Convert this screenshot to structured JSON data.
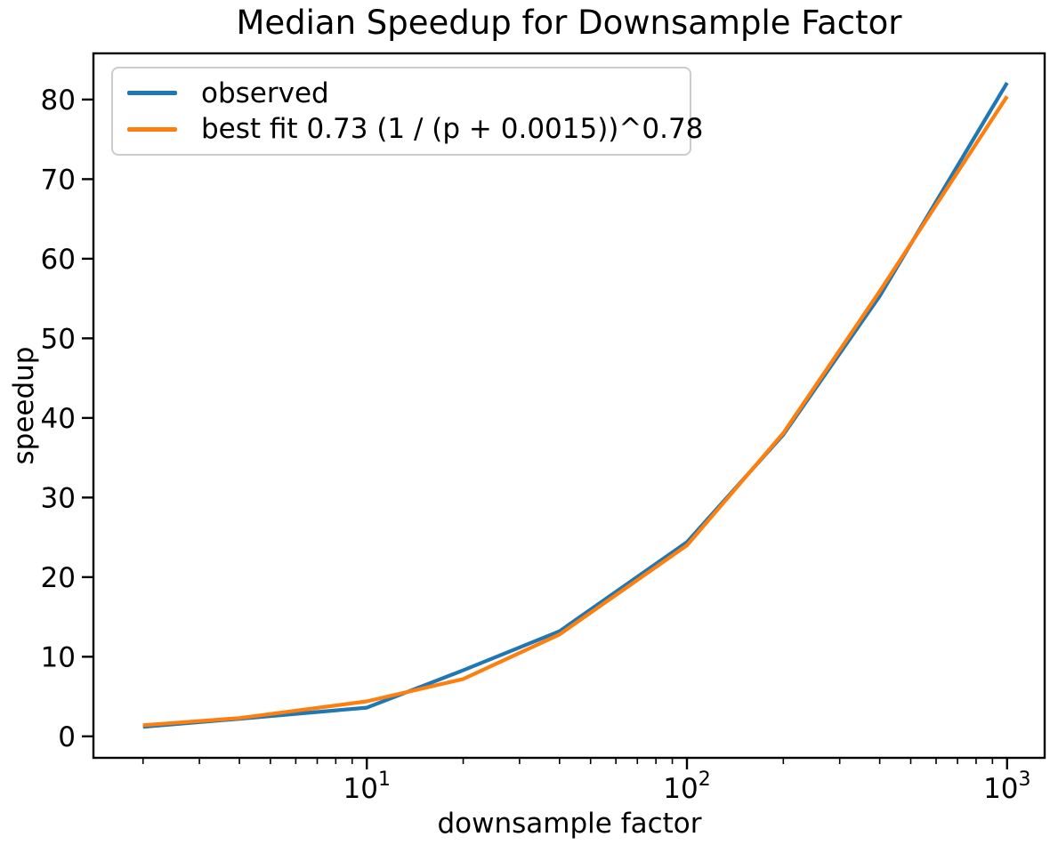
{
  "chart_data": {
    "type": "line",
    "title": "Median Speedup for Downsample Factor",
    "xlabel": "downsample factor",
    "ylabel": "speedup",
    "x_scale": "log",
    "grid": false,
    "legend_position": "upper left",
    "x": [
      2,
      4,
      10,
      20,
      40,
      100,
      200,
      400,
      1000
    ],
    "series": [
      {
        "name": "observed",
        "color": "#1f77b4",
        "values": [
          1.2,
          2.2,
          3.6,
          8.3,
          13.2,
          24.4,
          37.9,
          55.3,
          82.1
        ]
      },
      {
        "name": "best fit 0.73 (1 / (p + 0.0015))^0.78",
        "color": "#ff7f0e",
        "values": [
          1.4,
          2.3,
          4.4,
          7.2,
          12.8,
          24.0,
          38.1,
          55.9,
          80.4
        ]
      }
    ],
    "xlim": [
      1.4,
      1310
    ],
    "ylim": [
      -2.7,
      85.8
    ],
    "y_ticks": [
      0,
      10,
      20,
      30,
      40,
      50,
      60,
      70,
      80
    ],
    "x_major_ticks": [
      10,
      100,
      1000
    ],
    "x_major_tick_labels": [
      {
        "base": "10",
        "exponent": "1"
      },
      {
        "base": "10",
        "exponent": "2"
      },
      {
        "base": "10",
        "exponent": "3"
      }
    ],
    "x_minor_ticks": [
      2,
      3,
      4,
      5,
      6,
      7,
      8,
      9,
      20,
      30,
      40,
      50,
      60,
      70,
      80,
      90,
      200,
      300,
      400,
      500,
      600,
      700,
      800,
      900
    ]
  }
}
